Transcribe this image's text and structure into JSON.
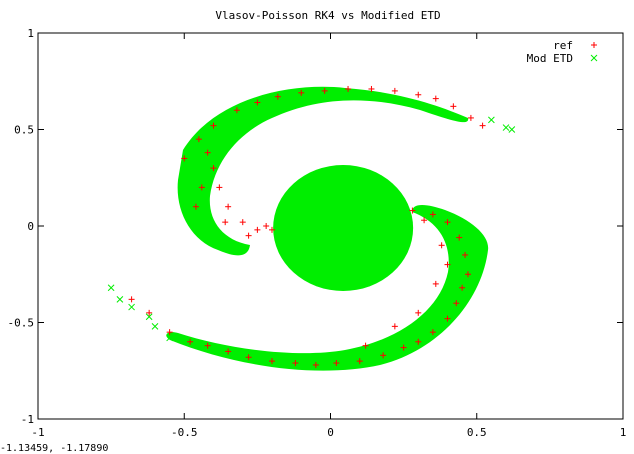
{
  "chart_data": {
    "type": "scatter",
    "title": "Vlasov-Poisson RK4 vs Modified ETD",
    "xlabel": "",
    "ylabel": "",
    "xlim": [
      -1,
      1
    ],
    "ylim": [
      -1,
      1
    ],
    "x_ticks": [
      -1,
      -0.5,
      0,
      0.5,
      1
    ],
    "y_ticks": [
      -1,
      -0.5,
      0,
      0.5,
      1
    ],
    "x_tick_labels": [
      "-1",
      "-0.5",
      "0",
      "0.5",
      "1"
    ],
    "y_tick_labels": [
      "-1",
      "-0.5",
      "0",
      "0.5",
      "1"
    ],
    "grid": false,
    "legend_position": "top-right",
    "series": [
      {
        "name": "ref",
        "marker": "+",
        "color": "#ff0000",
        "points": [
          [
            -0.68,
            -0.38
          ],
          [
            -0.62,
            -0.45
          ],
          [
            -0.55,
            -0.55
          ],
          [
            -0.48,
            -0.6
          ],
          [
            -0.42,
            -0.62
          ],
          [
            -0.35,
            -0.65
          ],
          [
            -0.28,
            -0.68
          ],
          [
            -0.2,
            -0.7
          ],
          [
            -0.12,
            -0.71
          ],
          [
            -0.05,
            -0.72
          ],
          [
            0.02,
            -0.71
          ],
          [
            0.1,
            -0.7
          ],
          [
            0.18,
            -0.67
          ],
          [
            0.25,
            -0.63
          ],
          [
            0.3,
            -0.6
          ],
          [
            0.35,
            -0.55
          ],
          [
            0.4,
            -0.48
          ],
          [
            0.43,
            -0.4
          ],
          [
            0.45,
            -0.32
          ],
          [
            0.47,
            -0.25
          ],
          [
            0.46,
            -0.15
          ],
          [
            0.44,
            -0.06
          ],
          [
            0.4,
            0.02
          ],
          [
            0.35,
            0.06
          ],
          [
            0.28,
            0.08
          ],
          [
            0.32,
            0.03
          ],
          [
            0.38,
            -0.1
          ],
          [
            0.4,
            -0.2
          ],
          [
            0.36,
            -0.3
          ],
          [
            0.3,
            -0.45
          ],
          [
            0.22,
            -0.52
          ],
          [
            0.12,
            -0.62
          ],
          [
            -0.5,
            0.35
          ],
          [
            -0.45,
            0.45
          ],
          [
            -0.4,
            0.52
          ],
          [
            -0.32,
            0.6
          ],
          [
            -0.25,
            0.64
          ],
          [
            -0.18,
            0.67
          ],
          [
            -0.1,
            0.69
          ],
          [
            -0.02,
            0.7
          ],
          [
            0.06,
            0.71
          ],
          [
            0.14,
            0.71
          ],
          [
            0.22,
            0.7
          ],
          [
            0.3,
            0.68
          ],
          [
            0.36,
            0.66
          ],
          [
            0.42,
            0.62
          ],
          [
            0.48,
            0.56
          ],
          [
            0.52,
            0.52
          ],
          [
            -0.42,
            0.38
          ],
          [
            -0.4,
            0.3
          ],
          [
            -0.38,
            0.2
          ],
          [
            -0.35,
            0.1
          ],
          [
            -0.3,
            0.02
          ],
          [
            -0.25,
            -0.02
          ],
          [
            -0.2,
            -0.02
          ],
          [
            -0.44,
            0.2
          ],
          [
            -0.46,
            0.1
          ],
          [
            -0.36,
            0.02
          ],
          [
            -0.28,
            -0.05
          ],
          [
            -0.22,
            0.0
          ]
        ]
      },
      {
        "name": "Mod ETD",
        "marker": "x",
        "color": "#00ee00",
        "points": [
          [
            -0.75,
            -0.32
          ],
          [
            -0.68,
            -0.42
          ],
          [
            -0.6,
            -0.52
          ],
          [
            -0.55,
            -0.58
          ],
          [
            0.55,
            0.55
          ],
          [
            0.6,
            0.51
          ],
          [
            0.62,
            0.5
          ],
          [
            -0.72,
            -0.38
          ],
          [
            -0.62,
            -0.47
          ]
        ]
      }
    ],
    "overlay_note": ""
  },
  "mouse_readout": "-1.13459, -1.17890",
  "colors": {
    "ref": "#ff0000",
    "mod_etd": "#00ee00",
    "background": "#ffffff",
    "axis": "#000000"
  }
}
